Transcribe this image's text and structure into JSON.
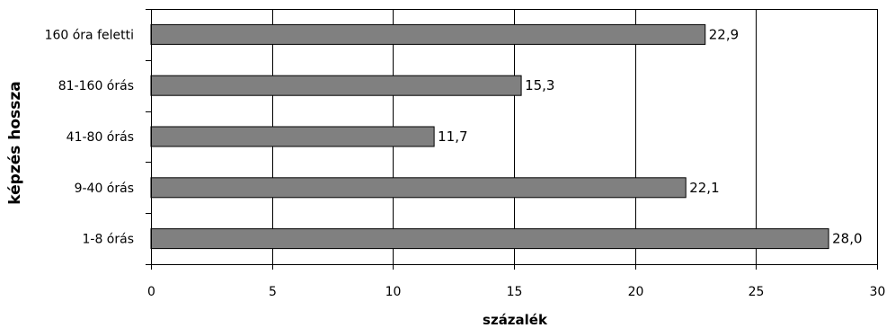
{
  "chart_data": {
    "type": "bar",
    "orientation": "horizontal",
    "categories": [
      "160 óra feletti",
      "81-160 órás",
      "41-80 órás",
      "9-40 órás",
      "1-8 órás"
    ],
    "values": [
      22.9,
      15.3,
      11.7,
      22.1,
      28.0
    ],
    "data_labels": [
      "22,9",
      "15,3",
      "11,7",
      "22,1",
      "28,0"
    ],
    "xlabel": "százalék",
    "ylabel": "képzés hossza",
    "xlim": [
      0,
      30
    ],
    "xticks": [
      0,
      5,
      10,
      15,
      20,
      25,
      30
    ],
    "xtick_labels": [
      "0",
      "5",
      "10",
      "15",
      "20",
      "25",
      "30"
    ],
    "grid": "vertical",
    "legend": "none",
    "bar_color": "#808080"
  }
}
